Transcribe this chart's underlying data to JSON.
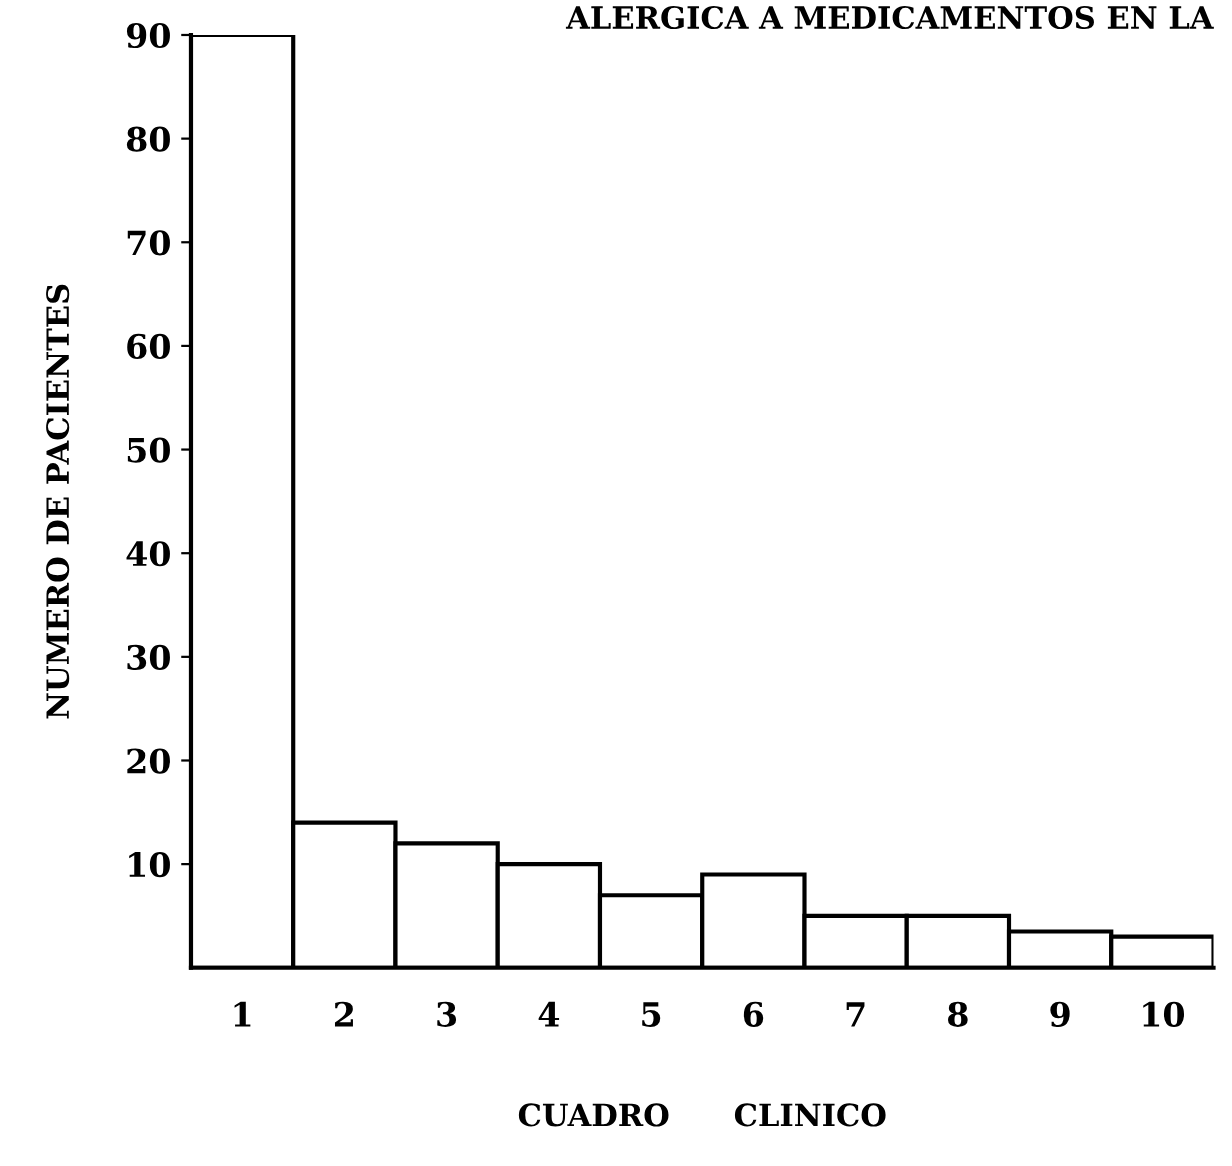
{
  "chart_data": {
    "type": "bar",
    "title": "ALERGICA A MEDICAMENTOS EN LA",
    "xlabel": "CUADRO      CLINICO",
    "ylabel": "NUMERO DE PACIENTES",
    "categories": [
      "1",
      "2",
      "3",
      "4",
      "5",
      "6",
      "7",
      "8",
      "9",
      "10"
    ],
    "values": [
      90,
      14,
      12,
      10,
      7,
      9,
      5,
      5,
      3.5,
      3
    ],
    "color": "#ffffff",
    "ylim": [
      0,
      90
    ],
    "yticks": [
      10,
      20,
      30,
      40,
      50,
      60,
      70,
      80,
      90
    ],
    "grid": false,
    "legend": false
  }
}
